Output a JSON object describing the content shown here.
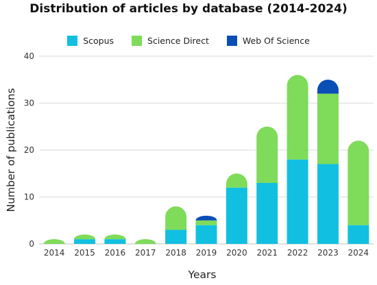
{
  "chart_data": {
    "type": "bar",
    "stacked": true,
    "title": "Distribution of articles by database (2014-2024)",
    "xlabel": "Years",
    "ylabel": "Number of publications",
    "categories": [
      "2014",
      "2015",
      "2016",
      "2017",
      "2018",
      "2019",
      "2020",
      "2021",
      "2022",
      "2023",
      "2024"
    ],
    "series": [
      {
        "name": "Scopus",
        "color": "#11c0e0",
        "values": [
          0,
          1,
          1,
          0,
          3,
          4,
          12,
          13,
          18,
          17,
          4
        ]
      },
      {
        "name": "Science Direct",
        "color": "#7fdb5a",
        "values": [
          1,
          1,
          1,
          1,
          5,
          1,
          3,
          12,
          18,
          15,
          18
        ]
      },
      {
        "name": "Web Of Science",
        "color": "#0a4fb4",
        "values": [
          0,
          0,
          0,
          0,
          0,
          1,
          0,
          0,
          0,
          3,
          0
        ]
      }
    ],
    "ylim": [
      0,
      40
    ],
    "yticks": [
      0,
      10,
      20,
      30,
      40
    ],
    "grid": true,
    "legend_position": "top-center",
    "bar_style": "rounded-top"
  }
}
